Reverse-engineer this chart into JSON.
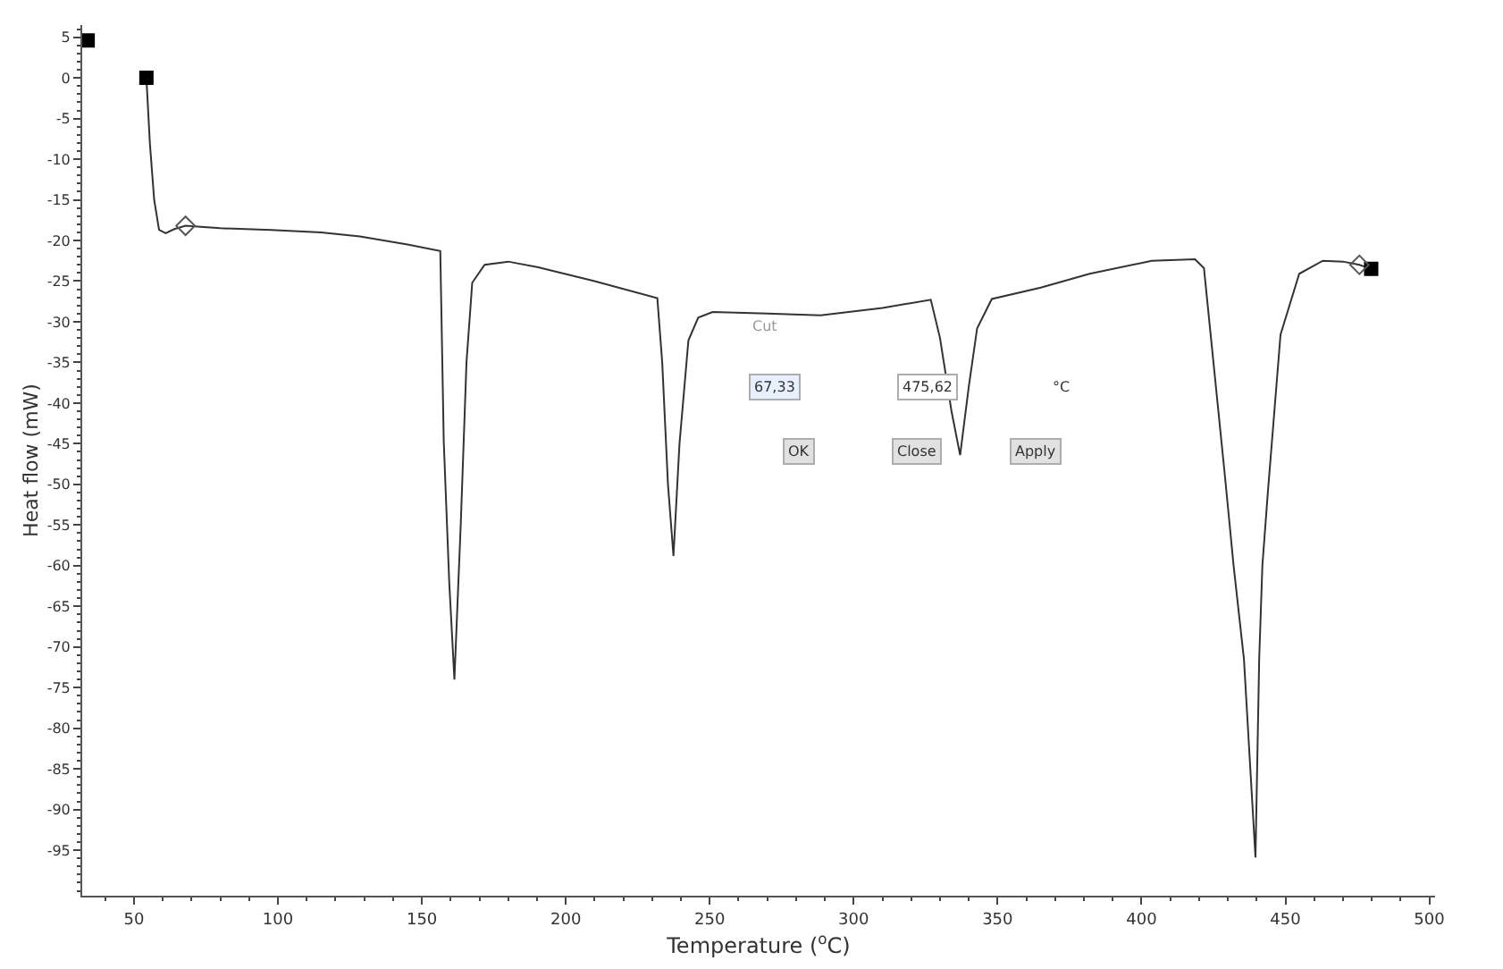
{
  "chart_data": {
    "type": "line",
    "xlabel": "Temperature ($^{o}$C)",
    "ylabel": "Heat flow (mW)",
    "xlim": [
      32,
      502
    ],
    "ylim": [
      -100.6,
      6.5
    ],
    "xticks": [
      50,
      100,
      150,
      200,
      250,
      300,
      350,
      400,
      450,
      500
    ],
    "yticks": [
      5,
      0,
      -5,
      -10,
      -15,
      -20,
      -25,
      -30,
      -35,
      -40,
      -45,
      -50,
      -55,
      -60,
      -65,
      -70,
      -75,
      -80,
      -85,
      -90,
      -95
    ],
    "marker": "none",
    "line_style": "solid",
    "series": [
      {
        "color": "#333333",
        "x": [
          54.3,
          55.5,
          57,
          58.7,
          61,
          64,
          67.9,
          80,
          97.6,
          115,
          128.5,
          145,
          156.4,
          157.6,
          159.5,
          161.3,
          163.5,
          165.5,
          167.5,
          171.8,
          180,
          190.4,
          210,
          231.8,
          233.5,
          235.5,
          237.4,
          239.5,
          242.6,
          246,
          251,
          270,
          288.5,
          310,
          326.8,
          330,
          334,
          337,
          340,
          342.9,
          348,
          365,
          382,
          403.6,
          418.6,
          421.7,
          425,
          429,
          432,
          435.6,
          439.6,
          440.9,
          442,
          443.9,
          448.3,
          454.8,
          463,
          470,
          475.7,
          479.8
        ],
        "values": [
          0,
          -8,
          -15,
          -18.7,
          -19.1,
          -18.6,
          -18.2,
          -18.5,
          -18.7,
          -19,
          -19.5,
          -20.5,
          -21.3,
          -44.7,
          -62,
          -74,
          -55,
          -35,
          -25.2,
          -23,
          -22.6,
          -23.3,
          -25,
          -27.1,
          -35,
          -50,
          -58.8,
          -45,
          -32.3,
          -29.5,
          -28.8,
          -29,
          -29.2,
          -28.3,
          -27.3,
          -32,
          -41,
          -46.4,
          -38,
          -30.8,
          -27.2,
          -25.8,
          -24.1,
          -22.5,
          -22.3,
          -23.4,
          -35,
          -49,
          -60,
          -71.5,
          -95.9,
          -71.4,
          -60,
          -51,
          -31.6,
          -24.1,
          -22.5,
          -22.6,
          -23,
          -23.5
        ]
      },
      {
        "type": "scatter",
        "marker": "square",
        "color": "#000000",
        "x": [
          33.9,
          54.3,
          479.8
        ],
        "values": [
          4.6,
          0,
          -23.5
        ]
      },
      {
        "type": "scatter",
        "marker": "diamond",
        "color": "#555555",
        "x": [
          67.9,
          475.7
        ],
        "values": [
          -18.2,
          -23
        ]
      }
    ],
    "annotations": [
      "Cut",
      "67,33",
      "475,62",
      "°C",
      "OK",
      "Close",
      "Apply"
    ]
  }
}
